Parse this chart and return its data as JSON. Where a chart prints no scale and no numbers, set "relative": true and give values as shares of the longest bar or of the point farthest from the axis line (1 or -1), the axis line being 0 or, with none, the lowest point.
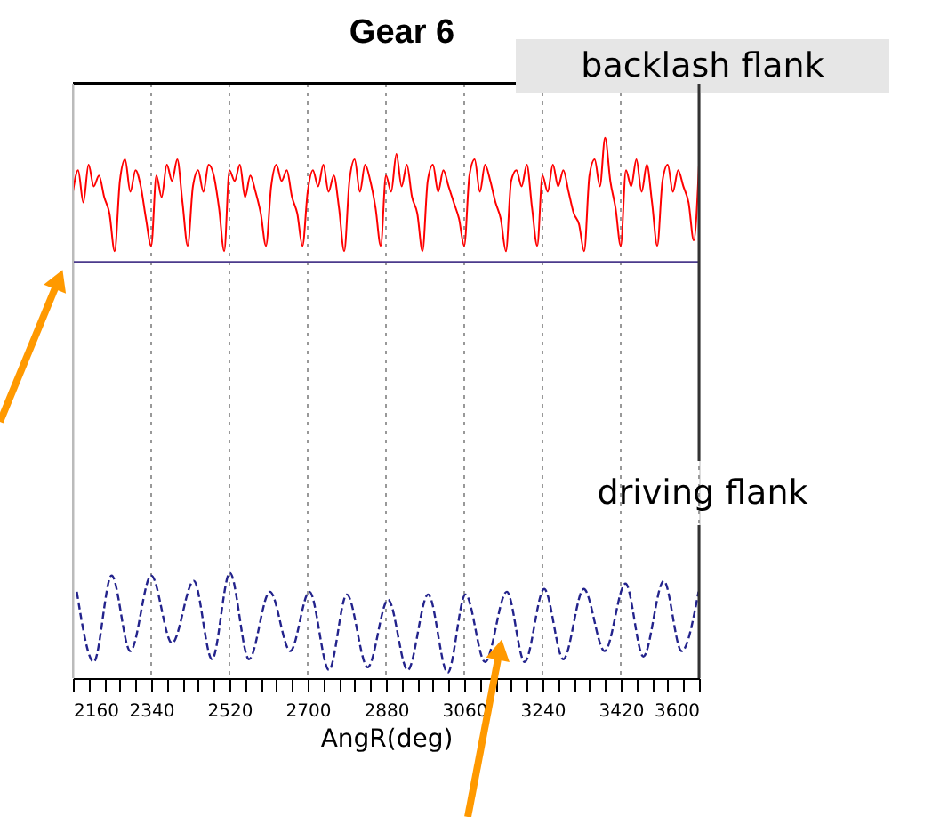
{
  "chart_data": {
    "type": "line",
    "title": "Gear 6",
    "xlabel": "AngR(deg)",
    "relative": true,
    "grid": "x",
    "legend": false,
    "xlim": [
      2160,
      3600
    ],
    "xticks": [
      2160,
      {
        "value": 2196,
        "label": null
      },
      {
        "value": 2232,
        "label": null
      },
      {
        "value": 2268,
        "label": null
      },
      {
        "value": 2304,
        "label": null
      },
      2340,
      {
        "value": 2376,
        "label": null
      },
      {
        "value": 2412,
        "label": null
      },
      {
        "value": 2448,
        "label": null
      },
      {
        "value": 2484,
        "label": null
      },
      2520,
      {
        "value": 2556,
        "label": null
      },
      {
        "value": 2592,
        "label": null
      },
      {
        "value": 2628,
        "label": null
      },
      {
        "value": 2664,
        "label": null
      },
      2700,
      {
        "value": 2736,
        "label": null
      },
      {
        "value": 2772,
        "label": null
      },
      {
        "value": 2808,
        "label": null
      },
      {
        "value": 2844,
        "label": null
      },
      2880,
      {
        "value": 2916,
        "label": null
      },
      {
        "value": 2952,
        "label": null
      },
      {
        "value": 2988,
        "label": null
      },
      {
        "value": 3024,
        "label": null
      },
      3060,
      {
        "value": 3096,
        "label": null
      },
      {
        "value": 3132,
        "label": null
      },
      {
        "value": 3168,
        "label": null
      },
      {
        "value": 3204,
        "label": null
      },
      3240,
      {
        "value": 3276,
        "label": null
      },
      {
        "value": 3312,
        "label": null
      },
      {
        "value": 3348,
        "label": null
      },
      {
        "value": 3384,
        "label": null
      },
      3420,
      {
        "value": 3456,
        "label": null
      },
      {
        "value": 3492,
        "label": null
      },
      {
        "value": 3528,
        "label": null
      },
      {
        "value": 3564,
        "label": null
      },
      3600
    ],
    "ref_lines": [
      {
        "axis": "y",
        "value": 0.77,
        "label": null,
        "color": "#4b3a8c"
      }
    ],
    "series": [
      {
        "name": "backlash flank",
        "color": "#ff0000",
        "line_style": "solid",
        "marker": "none",
        "x": [
          2160,
          2172,
          2184,
          2196,
          2208,
          2220,
          2232,
          2244,
          2256,
          2268,
          2280,
          2292,
          2304,
          2316,
          2328,
          2340,
          2352,
          2364,
          2376,
          2388,
          2400,
          2412,
          2424,
          2436,
          2448,
          2460,
          2472,
          2484,
          2496,
          2508,
          2520,
          2532,
          2544,
          2556,
          2568,
          2580,
          2592,
          2604,
          2616,
          2628,
          2640,
          2652,
          2664,
          2676,
          2688,
          2700,
          2712,
          2724,
          2736,
          2748,
          2760,
          2772,
          2784,
          2796,
          2808,
          2820,
          2832,
          2844,
          2856,
          2868,
          2880,
          2892,
          2904,
          2916,
          2928,
          2940,
          2952,
          2964,
          2976,
          2988,
          3000,
          3012,
          3024,
          3036,
          3048,
          3060,
          3072,
          3084,
          3096,
          3108,
          3120,
          3132,
          3144,
          3156,
          3168,
          3180,
          3192,
          3204,
          3216,
          3228,
          3240,
          3252,
          3264,
          3276,
          3288,
          3300,
          3312,
          3324,
          3336,
          3348,
          3360,
          3372,
          3384,
          3396,
          3408,
          3420,
          3432,
          3444,
          3456,
          3468,
          3480,
          3492,
          3504,
          3516,
          3528,
          3540,
          3552,
          3564,
          3576,
          3588,
          3600
        ],
        "values": [
          0.9,
          0.94,
          0.88,
          0.95,
          0.91,
          0.93,
          0.89,
          0.86,
          0.79,
          0.92,
          0.96,
          0.9,
          0.94,
          0.91,
          0.85,
          0.8,
          0.93,
          0.89,
          0.95,
          0.92,
          0.96,
          0.88,
          0.8,
          0.91,
          0.94,
          0.9,
          0.95,
          0.93,
          0.87,
          0.79,
          0.94,
          0.92,
          0.95,
          0.89,
          0.93,
          0.9,
          0.86,
          0.8,
          0.91,
          0.95,
          0.92,
          0.94,
          0.89,
          0.86,
          0.8,
          0.9,
          0.94,
          0.91,
          0.95,
          0.9,
          0.93,
          0.87,
          0.79,
          0.92,
          0.96,
          0.9,
          0.95,
          0.92,
          0.87,
          0.8,
          0.93,
          0.9,
          0.97,
          0.91,
          0.95,
          0.89,
          0.86,
          0.79,
          0.92,
          0.95,
          0.9,
          0.94,
          0.91,
          0.88,
          0.85,
          0.8,
          0.93,
          0.96,
          0.9,
          0.95,
          0.92,
          0.88,
          0.85,
          0.79,
          0.92,
          0.94,
          0.91,
          0.95,
          0.87,
          0.8,
          0.93,
          0.9,
          0.95,
          0.91,
          0.94,
          0.9,
          0.86,
          0.84,
          0.79,
          0.93,
          0.96,
          0.91,
          1.0,
          0.92,
          0.87,
          0.8,
          0.94,
          0.91,
          0.96,
          0.9,
          0.95,
          0.88,
          0.8,
          0.92,
          0.95,
          0.9,
          0.94,
          0.91,
          0.88,
          0.81,
          0.95
        ]
      },
      {
        "name": "driving flank",
        "color": "#23238c",
        "line_style": "dashed",
        "marker": "none",
        "x": [
          2169,
          2208,
          2249,
          2292,
          2340,
          2388,
          2438,
          2480,
          2521,
          2565,
          2613,
          2660,
          2704,
          2749,
          2790,
          2838,
          2885,
          2930,
          2977,
          3022,
          3063,
          3108,
          3158,
          3199,
          3244,
          3288,
          3335,
          3383,
          3431,
          3472,
          3519,
          3560,
          3599
        ],
        "values": [
          0.16,
          0.03,
          0.19,
          0.05,
          0.19,
          0.065,
          0.18,
          0.035,
          0.195,
          0.035,
          0.16,
          0.05,
          0.16,
          0.015,
          0.155,
          0.02,
          0.145,
          0.015,
          0.155,
          0.01,
          0.155,
          0.03,
          0.16,
          0.03,
          0.165,
          0.035,
          0.165,
          0.05,
          0.175,
          0.04,
          0.18,
          0.05,
          0.16
        ]
      }
    ]
  }
}
